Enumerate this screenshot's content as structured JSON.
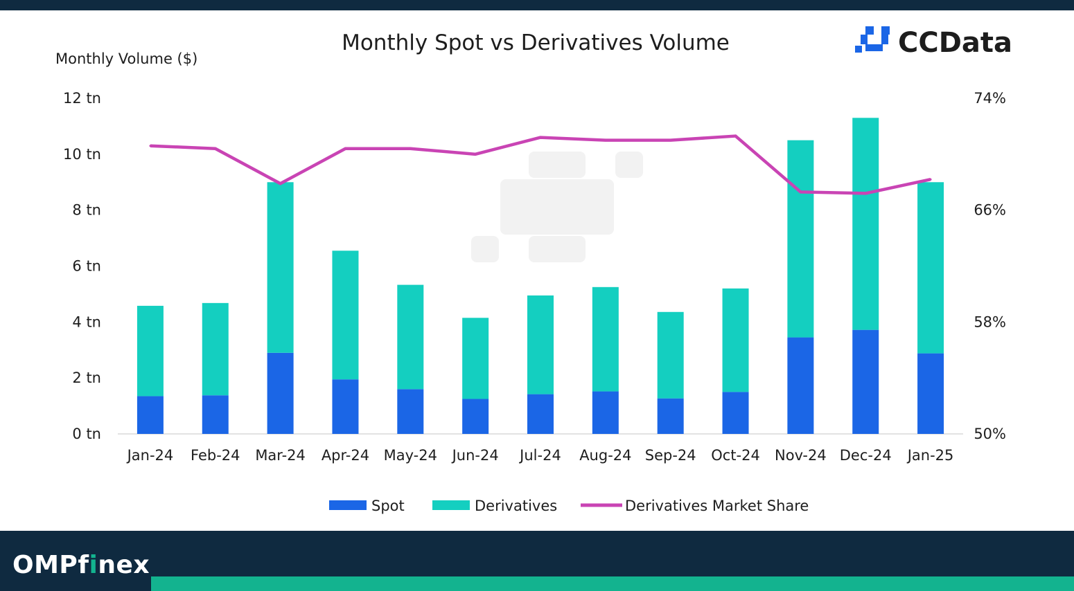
{
  "footer": {
    "brand_main": "OMP",
    "brand_f": "f",
    "brand_i": "i",
    "brand_rest": "nex"
  },
  "brand": {
    "name": "CCData"
  },
  "colors": {
    "spot": "#1b66e6",
    "derivatives": "#14cfc0",
    "share": "#c944b4",
    "footer_bg": "#0f2a40",
    "footer_accent": "#13b38f",
    "brand_blue": "#1b66e6"
  },
  "chart_data": {
    "type": "bar",
    "stacked": true,
    "title": "Monthly Spot vs Derivatives Volume",
    "ylabel": "Monthly Volume ($)",
    "categories": [
      "Jan-24",
      "Feb-24",
      "Mar-24",
      "Apr-24",
      "May-24",
      "Jun-24",
      "Jul-24",
      "Aug-24",
      "Sep-24",
      "Oct-24",
      "Nov-24",
      "Dec-24",
      "Jan-25"
    ],
    "ylim": [
      0,
      12
    ],
    "yticks": [
      "0 tn",
      "2 tn",
      "4 tn",
      "6 tn",
      "8 tn",
      "10 tn",
      "12 tn"
    ],
    "y2lim": [
      50,
      74
    ],
    "y2ticks": [
      "50%",
      "58%",
      "66%",
      "74%"
    ],
    "series": [
      {
        "name": "Spot",
        "kind": "bar",
        "values": [
          1.35,
          1.38,
          2.9,
          1.95,
          1.6,
          1.25,
          1.42,
          1.52,
          1.27,
          1.5,
          3.45,
          3.72,
          2.88
        ]
      },
      {
        "name": "Derivatives",
        "kind": "bar",
        "values": [
          3.23,
          3.3,
          6.1,
          4.6,
          3.73,
          2.9,
          3.53,
          3.73,
          3.09,
          3.7,
          7.05,
          7.58,
          6.12
        ]
      },
      {
        "name": "Derivatives Market Share",
        "kind": "line",
        "axis": "right",
        "values": [
          70.6,
          70.4,
          67.9,
          70.4,
          70.4,
          70.0,
          71.2,
          71.0,
          71.0,
          71.3,
          67.3,
          67.2,
          68.2
        ]
      }
    ],
    "legend_position": "bottom",
    "grid": false
  }
}
